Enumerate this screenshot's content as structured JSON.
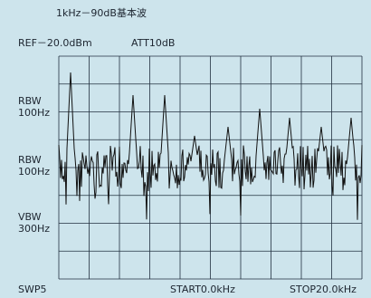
{
  "header": {
    "title": "1kHz－90dB基本波",
    "ref": "REF－20.0dBm",
    "att": "ATT10dB"
  },
  "side_labels": [
    {
      "line1": "RBW",
      "line2": "100Hz"
    },
    {
      "line1": "RBW",
      "line2": "100Hz"
    },
    {
      "line1": "VBW",
      "line2": "300Hz"
    }
  ],
  "footer": {
    "sweep": "SWP5",
    "start": "START0.0kHz",
    "stop": "STOP20.0kHz"
  }
}
